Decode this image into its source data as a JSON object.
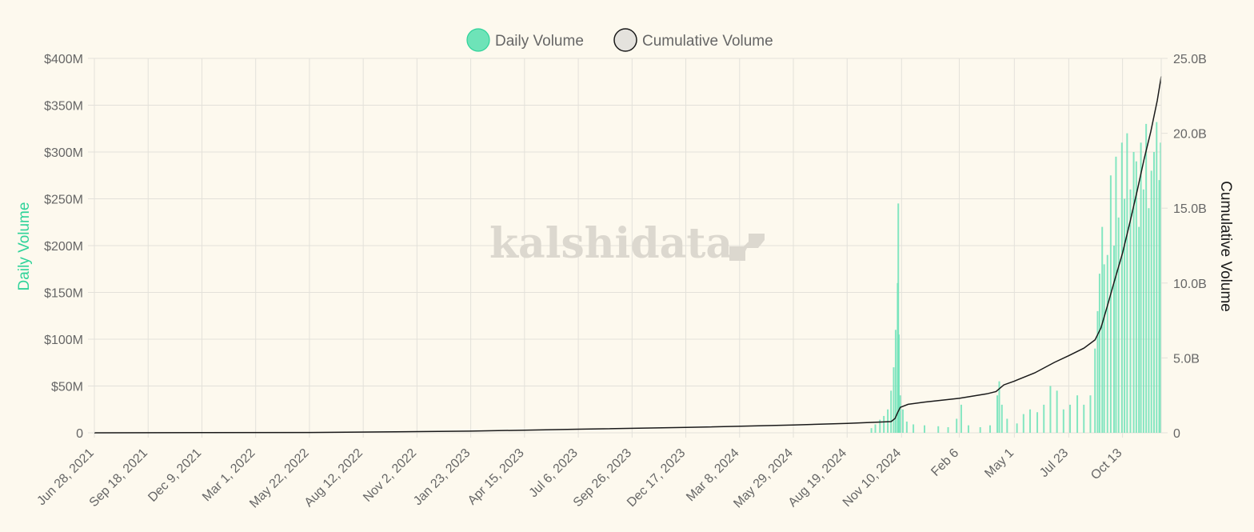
{
  "brand": {
    "watermark": "kalshidata"
  },
  "colors": {
    "daily": "#6ee3b8",
    "daily_stroke": "#2fd39a",
    "cumulative": "#1a1a1a",
    "cumulative_fill": "#e4e2dd",
    "grid": "#e3e1da"
  },
  "legend": {
    "daily": "Daily Volume",
    "cumulative": "Cumulative Volume"
  },
  "chart_data": {
    "type": "bar",
    "ylabel_left": "Daily Volume",
    "ylabel_right": "Cumulative Volume",
    "legend_position": "top",
    "grid": true,
    "x_range": [
      "2021-06-28",
      "2025-12-11"
    ],
    "x_tick_labels": [
      "Jun 28, 2021",
      "Sep 18, 2021",
      "Dec 9, 2021",
      "Mar 1, 2022",
      "May 22, 2022",
      "Aug 12, 2022",
      "Nov 2, 2022",
      "Jan 23, 2023",
      "Apr 15, 2023",
      "Jul 6, 2023",
      "Sep 26, 2023",
      "Dec 17, 2023",
      "Mar 8, 2024",
      "May 29, 2024",
      "Aug 19, 2024",
      "Nov 10, 2024",
      "Feb 6",
      "May 1",
      "Jul 23",
      "Oct 13"
    ],
    "x_tick_dates": [
      "2021-06-28",
      "2021-09-18",
      "2021-12-09",
      "2022-03-01",
      "2022-05-22",
      "2022-08-12",
      "2022-11-02",
      "2023-01-23",
      "2023-04-15",
      "2023-07-06",
      "2023-09-26",
      "2023-12-17",
      "2024-03-08",
      "2024-05-29",
      "2024-08-19",
      "2024-11-10",
      "2025-02-06",
      "2025-05-01",
      "2025-07-23",
      "2025-10-13"
    ],
    "y_left": {
      "ticks": [
        "0",
        "$50M",
        "$100M",
        "$150M",
        "$200M",
        "$250M",
        "$300M",
        "$350M",
        "$400M"
      ],
      "range": [
        0,
        400000000
      ]
    },
    "y_right": {
      "ticks": [
        "0",
        "5.0B",
        "10.0B",
        "15.0B",
        "20.0B",
        "25.0B"
      ],
      "range": [
        0,
        25000000000
      ]
    },
    "series": [
      {
        "name": "Daily Volume",
        "kind": "bar",
        "unit": "USD",
        "points": [
          [
            "2024-09-25",
            5000000
          ],
          [
            "2024-10-01",
            9000000
          ],
          [
            "2024-10-08",
            14000000
          ],
          [
            "2024-10-14",
            18000000
          ],
          [
            "2024-10-20",
            25000000
          ],
          [
            "2024-10-25",
            45000000
          ],
          [
            "2024-10-29",
            70000000
          ],
          [
            "2024-11-01",
            110000000
          ],
          [
            "2024-11-04",
            160000000
          ],
          [
            "2024-11-05",
            245000000
          ],
          [
            "2024-11-06",
            105000000
          ],
          [
            "2024-11-08",
            40000000
          ],
          [
            "2024-11-12",
            25000000
          ],
          [
            "2024-11-18",
            12000000
          ],
          [
            "2024-11-28",
            9000000
          ],
          [
            "2024-12-15",
            8000000
          ],
          [
            "2025-01-05",
            7000000
          ],
          [
            "2025-01-20",
            6000000
          ],
          [
            "2025-02-02",
            15000000
          ],
          [
            "2025-02-09",
            30000000
          ],
          [
            "2025-02-20",
            8000000
          ],
          [
            "2025-03-10",
            6000000
          ],
          [
            "2025-03-25",
            8000000
          ],
          [
            "2025-04-05",
            40000000
          ],
          [
            "2025-04-08",
            55000000
          ],
          [
            "2025-04-12",
            30000000
          ],
          [
            "2025-04-20",
            15000000
          ],
          [
            "2025-05-05",
            10000000
          ],
          [
            "2025-05-15",
            20000000
          ],
          [
            "2025-05-25",
            25000000
          ],
          [
            "2025-06-05",
            22000000
          ],
          [
            "2025-06-15",
            30000000
          ],
          [
            "2025-06-25",
            50000000
          ],
          [
            "2025-07-05",
            45000000
          ],
          [
            "2025-07-15",
            25000000
          ],
          [
            "2025-07-25",
            30000000
          ],
          [
            "2025-08-05",
            40000000
          ],
          [
            "2025-08-15",
            30000000
          ],
          [
            "2025-08-25",
            40000000
          ],
          [
            "2025-09-01",
            90000000
          ],
          [
            "2025-09-05",
            130000000
          ],
          [
            "2025-09-08",
            170000000
          ],
          [
            "2025-09-12",
            220000000
          ],
          [
            "2025-09-15",
            180000000
          ],
          [
            "2025-09-20",
            190000000
          ],
          [
            "2025-09-25",
            275000000
          ],
          [
            "2025-09-30",
            200000000
          ],
          [
            "2025-10-03",
            295000000
          ],
          [
            "2025-10-07",
            230000000
          ],
          [
            "2025-10-12",
            310000000
          ],
          [
            "2025-10-16",
            250000000
          ],
          [
            "2025-10-20",
            320000000
          ],
          [
            "2025-10-25",
            260000000
          ],
          [
            "2025-10-30",
            300000000
          ],
          [
            "2025-11-03",
            290000000
          ],
          [
            "2025-11-07",
            220000000
          ],
          [
            "2025-11-10",
            310000000
          ],
          [
            "2025-11-14",
            260000000
          ],
          [
            "2025-11-18",
            330000000
          ],
          [
            "2025-11-22",
            240000000
          ],
          [
            "2025-11-26",
            280000000
          ],
          [
            "2025-11-30",
            300000000
          ],
          [
            "2025-12-04",
            332000000
          ],
          [
            "2025-12-08",
            270000000
          ],
          [
            "2025-12-10",
            310000000
          ]
        ]
      },
      {
        "name": "Cumulative Volume",
        "kind": "line",
        "unit": "USD",
        "points": [
          [
            "2021-06-28",
            0
          ],
          [
            "2022-05-22",
            20000000
          ],
          [
            "2023-01-23",
            110000000
          ],
          [
            "2023-07-06",
            240000000
          ],
          [
            "2023-12-17",
            360000000
          ],
          [
            "2024-05-29",
            520000000
          ],
          [
            "2024-08-19",
            630000000
          ],
          [
            "2024-10-25",
            750000000
          ],
          [
            "2024-10-31",
            950000000
          ],
          [
            "2024-11-04",
            1350000000
          ],
          [
            "2024-11-08",
            1700000000
          ],
          [
            "2024-11-20",
            1900000000
          ],
          [
            "2024-12-15",
            2050000000
          ],
          [
            "2025-02-06",
            2300000000
          ],
          [
            "2025-03-20",
            2600000000
          ],
          [
            "2025-04-03",
            2750000000
          ],
          [
            "2025-04-15",
            3200000000
          ],
          [
            "2025-05-01",
            3450000000
          ],
          [
            "2025-06-01",
            4000000000
          ],
          [
            "2025-07-01",
            4700000000
          ],
          [
            "2025-07-23",
            5150000000
          ],
          [
            "2025-08-15",
            5650000000
          ],
          [
            "2025-09-01",
            6200000000
          ],
          [
            "2025-09-10",
            7000000000
          ],
          [
            "2025-09-20",
            8500000000
          ],
          [
            "2025-10-01",
            10200000000
          ],
          [
            "2025-10-13",
            12000000000
          ],
          [
            "2025-10-25",
            14200000000
          ],
          [
            "2025-11-05",
            16300000000
          ],
          [
            "2025-11-15",
            18300000000
          ],
          [
            "2025-11-25",
            20100000000
          ],
          [
            "2025-12-05",
            22200000000
          ],
          [
            "2025-12-11",
            23800000000
          ]
        ]
      }
    ]
  }
}
